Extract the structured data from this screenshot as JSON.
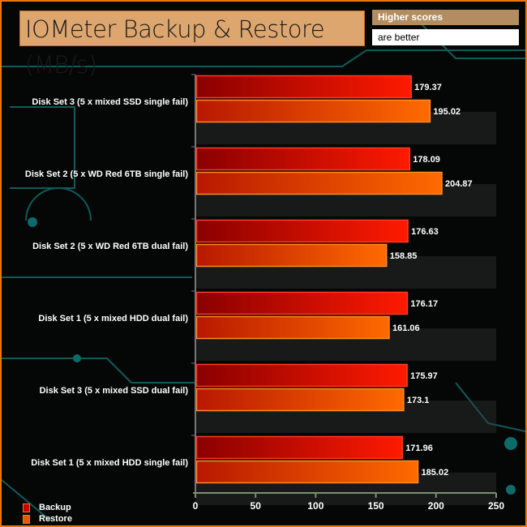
{
  "header": {
    "title": "IOMeter Backup & Restore (MB/s)",
    "badge_top": "Higher scores",
    "badge_bottom": "are better"
  },
  "chart_data": {
    "type": "bar",
    "orientation": "horizontal",
    "title": "IOMeter Backup & Restore (MB/s)",
    "categories": [
      "Disk Set 3 (5 x mixed SSD single fail)",
      "Disk Set 2 (5 x WD Red 6TB single fail)",
      "Disk Set 2 (5 x WD Red 6TB dual fail)",
      "Disk Set 1 (5 x mixed HDD dual fail)",
      "Disk Set 3 (5 x mixed SSD dual fail)",
      "Disk Set 1 (5 x mixed HDD single fail)"
    ],
    "series": [
      {
        "name": "Backup",
        "values": [
          179.37,
          178.09,
          176.63,
          176.17,
          175.97,
          171.96
        ],
        "color_start": "#8a0000",
        "color_end": "#ff1a00"
      },
      {
        "name": "Restore",
        "values": [
          195.02,
          204.87,
          158.85,
          161.06,
          173.1,
          185.02
        ],
        "color_start": "#b81800",
        "color_end": "#ff6a00"
      }
    ],
    "xlim": [
      0,
      250
    ],
    "xticks": [
      0,
      50,
      100,
      150,
      200,
      250
    ],
    "legend": "bottom-left"
  }
}
